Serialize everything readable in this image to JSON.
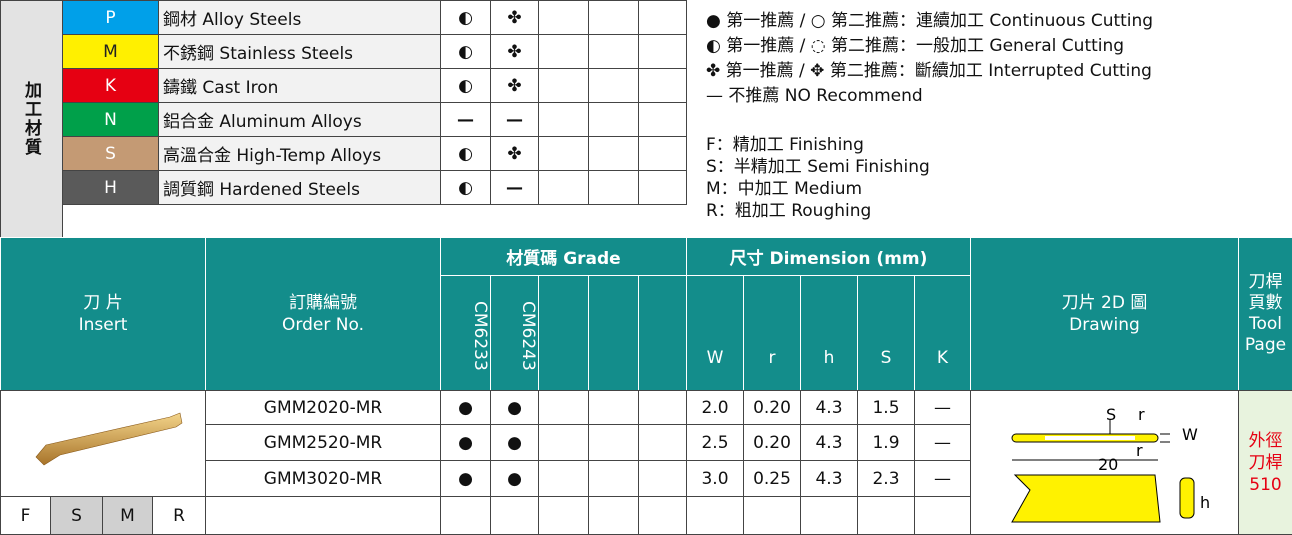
{
  "materials": {
    "label": "加工材質",
    "rows": [
      {
        "code": "P",
        "color": "#00a0e9",
        "name": "鋼材 Alloy Steels",
        "grades": [
          "◐",
          "✤"
        ]
      },
      {
        "code": "M",
        "color": "#fff000",
        "name": "不銹鋼 Stainless Steels",
        "grades": [
          "◐",
          "✤"
        ]
      },
      {
        "code": "K",
        "color": "#e60012",
        "name": "鑄鐵 Cast Iron",
        "grades": [
          "◐",
          "✤"
        ]
      },
      {
        "code": "N",
        "color": "#00a04a",
        "name": "鋁合金 Aluminum Alloys",
        "grades": [
          "—",
          "—"
        ]
      },
      {
        "code": "S",
        "color": "#c49a74",
        "name": "高溫合金 High-Temp Alloys",
        "grades": [
          "◐",
          "✤"
        ]
      },
      {
        "code": "H",
        "color": "#5a5a5a",
        "name": "調質鋼 Hardened Steels",
        "grades": [
          "◐",
          "—"
        ]
      }
    ]
  },
  "legend": {
    "symbols": [
      "● 第一推薦 / ○ 第二推薦：連續加工 Continuous Cutting",
      "◐ 第一推薦 / ◌ 第二推薦：一般加工 General Cutting",
      "✤ 第一推薦 / ✥ 第二推薦：斷續加工 Interrupted Cutting",
      "— 不推薦 NO Recommend"
    ],
    "finish": [
      "F：精加工 Finishing",
      "S：半精加工 Semi Finishing",
      "M：中加工 Medium",
      "R：粗加工 Roughing"
    ]
  },
  "table": {
    "headers": {
      "insert": [
        "刀 片",
        "Insert"
      ],
      "order": [
        "訂購編號",
        "Order No."
      ],
      "grade": "材質碼 Grade",
      "grades": [
        "CM6233",
        "CM6243"
      ],
      "dimension": "尺寸 Dimension (mm)",
      "dims": [
        "W",
        "r",
        "h",
        "S",
        "K"
      ],
      "drawing": [
        "刀片 2D 圖",
        "Drawing"
      ],
      "tool": [
        "刀桿",
        "頁數",
        "Tool",
        "Page"
      ]
    },
    "rows": [
      {
        "order": "GMM2020-MR",
        "grades": [
          "●",
          "●"
        ],
        "dims": [
          "2.0",
          "0.20",
          "4.3",
          "1.5",
          "—"
        ]
      },
      {
        "order": "GMM2520-MR",
        "grades": [
          "●",
          "●"
        ],
        "dims": [
          "2.5",
          "0.20",
          "4.3",
          "1.9",
          "—"
        ]
      },
      {
        "order": "GMM3020-MR",
        "grades": [
          "●",
          "●"
        ],
        "dims": [
          "3.0",
          "0.25",
          "4.3",
          "2.3",
          "—"
        ]
      }
    ],
    "finish_levels": [
      "F",
      "S",
      "M",
      "R"
    ],
    "drawing_labels": [
      "S",
      "r",
      "W",
      "r",
      "20",
      "h"
    ],
    "tool_page": [
      "外徑",
      "刀桿",
      "510"
    ]
  }
}
